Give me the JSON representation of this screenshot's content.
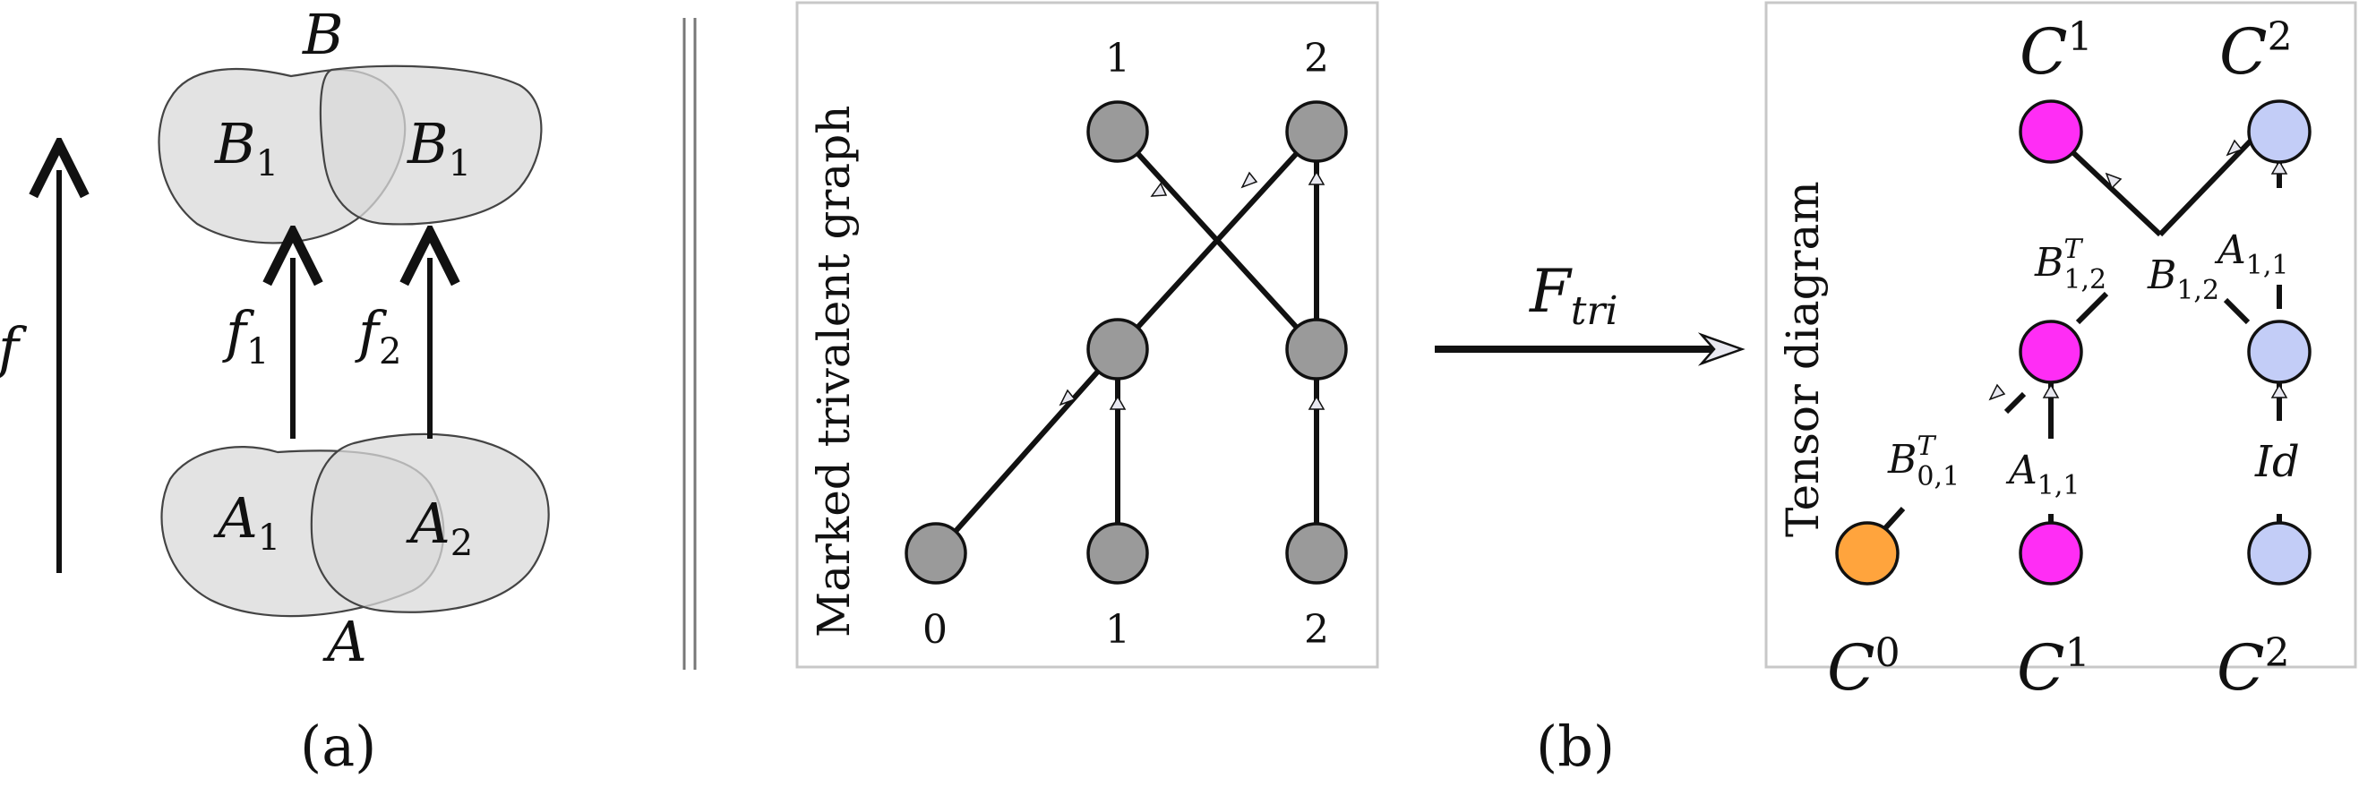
{
  "panel_a": {
    "set_top": "B",
    "blob_top_left": "B",
    "blob_top_left_sub": "1",
    "blob_top_right": "B",
    "blob_top_right_sub": "1",
    "set_bottom": "A",
    "blob_bottom_left": "A",
    "blob_bottom_left_sub": "1",
    "blob_bottom_right": "A",
    "blob_bottom_right_sub": "2",
    "arrow_main": "f",
    "arrow_left": "f",
    "arrow_left_sub": "1",
    "arrow_right": "f",
    "arrow_right_sub": "2",
    "caption": "(a)"
  },
  "panel_b": {
    "graph_title": "Marked trivalent graph",
    "top_labels": [
      "1",
      "2"
    ],
    "bottom_labels": [
      "0",
      "1",
      "2"
    ],
    "map_label": "F",
    "map_label_sub": "tri",
    "tensor_title": "Tensor diagram",
    "tensor_top": [
      "C",
      "C"
    ],
    "tensor_top_sup": [
      "1",
      "2"
    ],
    "tensor_bottom": [
      "C",
      "C",
      "C"
    ],
    "tensor_bottom_sup": [
      "0",
      "1",
      "2"
    ],
    "label_b12t": "B",
    "label_b12t_sup": "T",
    "label_b12t_sub": "1,2",
    "label_b12": "B",
    "label_b12_sub": "1,2",
    "label_a11_top": "A",
    "label_a11_top_sub": "1,1",
    "label_b01t": "B",
    "label_b01t_sup": "T",
    "label_b01t_sub": "0,1",
    "label_a11_bottom": "A",
    "label_a11_bottom_sub": "1,1",
    "label_id": "Id",
    "caption": "(b)"
  },
  "colors": {
    "node_gray": "#9a9a9a",
    "node_magenta": "#ff2df5",
    "node_blue": "#c3cdf7",
    "node_orange": "#ffa43d"
  }
}
